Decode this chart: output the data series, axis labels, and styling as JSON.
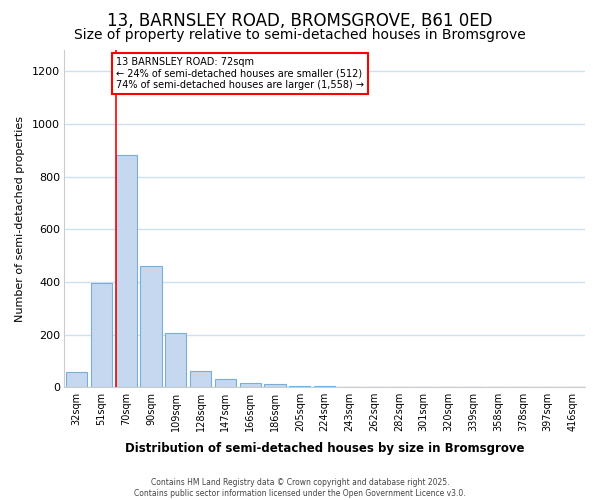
{
  "title": "13, BARNSLEY ROAD, BROMSGROVE, B61 0ED",
  "subtitle": "Size of property relative to semi-detached houses in Bromsgrove",
  "xlabel": "Distribution of semi-detached houses by size in Bromsgrove",
  "ylabel": "Number of semi-detached properties",
  "categories": [
    "32sqm",
    "51sqm",
    "70sqm",
    "90sqm",
    "109sqm",
    "128sqm",
    "147sqm",
    "166sqm",
    "186sqm",
    "205sqm",
    "224sqm",
    "243sqm",
    "262sqm",
    "282sqm",
    "301sqm",
    "320sqm",
    "339sqm",
    "358sqm",
    "378sqm",
    "397sqm",
    "416sqm"
  ],
  "values": [
    60,
    395,
    880,
    460,
    205,
    63,
    30,
    18,
    13,
    7,
    4,
    3,
    2,
    1,
    0,
    0,
    0,
    0,
    0,
    0,
    0
  ],
  "bar_color": "#c5d8f0",
  "bar_edge_color": "#7aaed6",
  "red_line_index": 2,
  "annotation_title": "13 BARNSLEY ROAD: 72sqm",
  "annotation_line1": "← 24% of semi-detached houses are smaller (512)",
  "annotation_line2": "74% of semi-detached houses are larger (1,558) →",
  "footer_line1": "Contains HM Land Registry data © Crown copyright and database right 2025.",
  "footer_line2": "Contains public sector information licensed under the Open Government Licence v3.0.",
  "ylim": [
    0,
    1280
  ],
  "yticks": [
    0,
    200,
    400,
    600,
    800,
    1000,
    1200
  ],
  "bg_color": "#ffffff",
  "grid_color": "#d0dff0",
  "title_fontsize": 12,
  "subtitle_fontsize": 10
}
